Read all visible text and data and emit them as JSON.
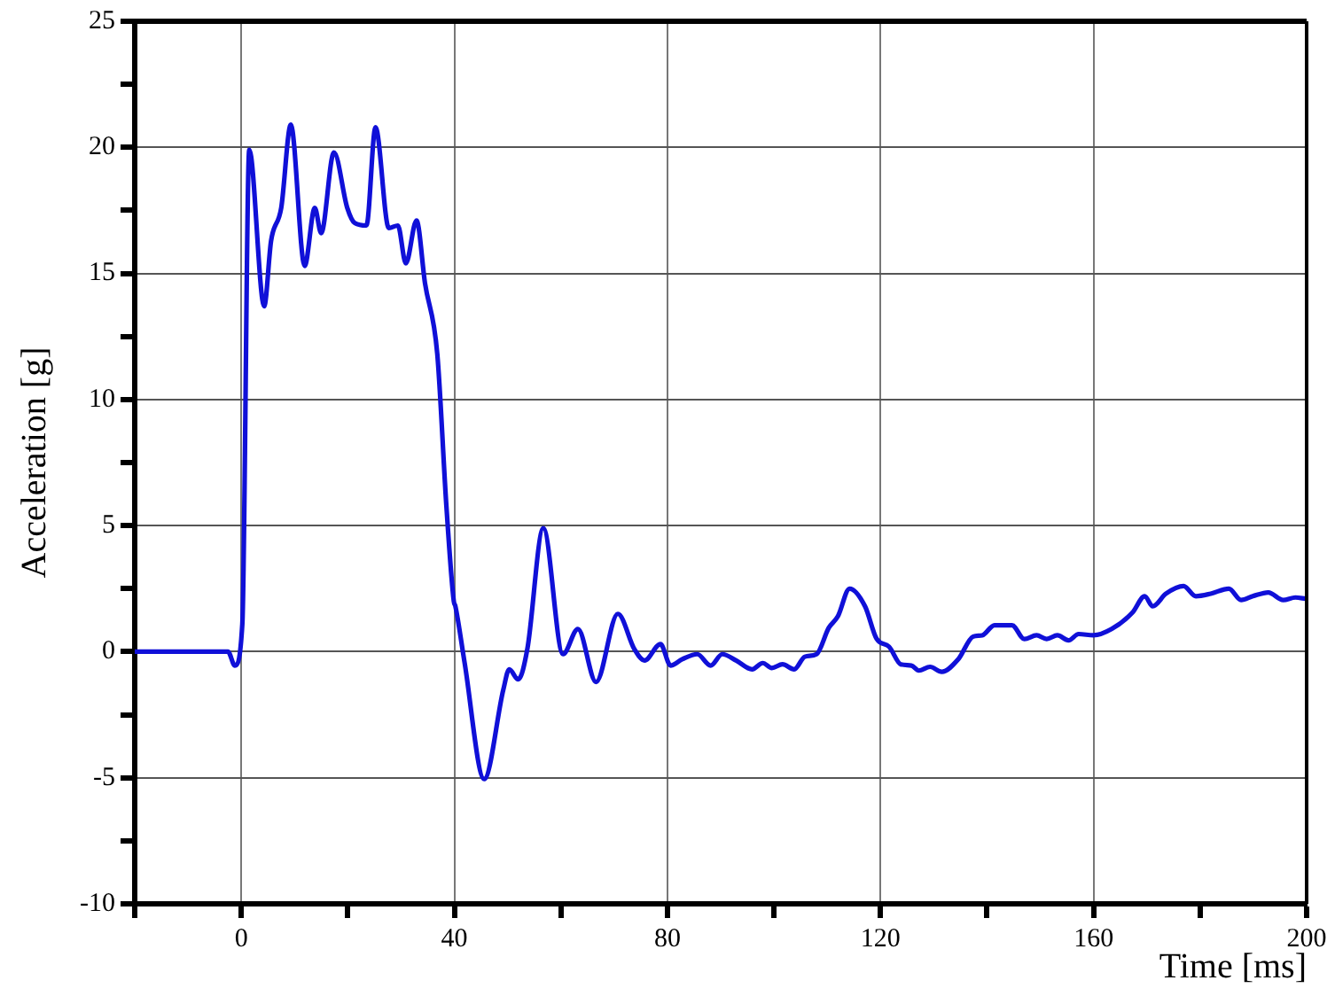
{
  "chart_data": {
    "type": "line",
    "xlabel": "Time [ms]",
    "ylabel": "Acceleration [g]",
    "xlim": [
      -20,
      200
    ],
    "ylim": [
      -10,
      25
    ],
    "xticks": [
      {
        "value": -20,
        "label": null
      },
      0,
      {
        "value": 20,
        "label": null
      },
      40,
      {
        "value": 60,
        "label": null
      },
      80,
      {
        "value": 100,
        "label": null
      },
      120,
      {
        "value": 140,
        "label": null
      },
      160,
      {
        "value": 180,
        "label": null
      },
      200
    ],
    "yticks": [
      -10,
      {
        "value": -7.5,
        "label": null
      },
      -5,
      {
        "value": -2.5,
        "label": null
      },
      0,
      {
        "value": 2.5,
        "label": null
      },
      5,
      {
        "value": 7.5,
        "label": null
      },
      10,
      {
        "value": 12.5,
        "label": null
      },
      15,
      {
        "value": 17.5,
        "label": null
      },
      20,
      {
        "value": 22.5,
        "label": null
      },
      25
    ],
    "grid": true,
    "marker": "none",
    "line_style": "solid",
    "series": [
      {
        "color": "#1010d8",
        "x": [
          -20,
          -10,
          -2.5,
          -1.2,
          0.2,
          1.5,
          4.3,
          5.6,
          7.5,
          9.3,
          11.9,
          13.8,
          15,
          17.4,
          19.9,
          21.3,
          23.5,
          25.2,
          27.7,
          29.4,
          30.9,
          32.9,
          34.5,
          36.8,
          38.5,
          39.9,
          40.2,
          41.9,
          45.6,
          49.2,
          50.3,
          52.0,
          53.7,
          56.7,
          60.4,
          63.2,
          66.6,
          70.7,
          73.8,
          75.7,
          78.7,
          80.6,
          82.8,
          85.6,
          88.1,
          90.3,
          92.9,
          95.9,
          97.9,
          99.6,
          101.6,
          103.8,
          105.8,
          108.0,
          110.3,
          112.0,
          114.2,
          117.1,
          119.3,
          121.6,
          123.8,
          125.8,
          127.2,
          129.3,
          131.5,
          134.6,
          137.4,
          139.1,
          141.4,
          144.7,
          147,
          149.3,
          151.2,
          153.2,
          155.3,
          157.2,
          160,
          163.4,
          167.3,
          169.6,
          171.1,
          173.6,
          176.9,
          179.2,
          182.0,
          185.4,
          187.7,
          189.9,
          192.8,
          195.6,
          197.9,
          199.8
        ],
        "values": [
          0,
          0,
          0,
          -0.55,
          1.1,
          19.9,
          13.7,
          16.3,
          17.6,
          20.9,
          15.3,
          17.6,
          16.6,
          19.8,
          17.6,
          17.0,
          16.9,
          20.8,
          16.8,
          16.9,
          15.4,
          17.1,
          14.6,
          11.8,
          5.8,
          2.0,
          1.8,
          -0.4,
          -5.05,
          -1.5,
          -0.7,
          -1.1,
          0.1,
          4.9,
          -0.1,
          0.9,
          -1.2,
          1.5,
          0.1,
          -0.35,
          0.3,
          -0.55,
          -0.3,
          -0.1,
          -0.55,
          -0.1,
          -0.35,
          -0.7,
          -0.45,
          -0.65,
          -0.5,
          -0.7,
          -0.2,
          -0.1,
          0.95,
          1.4,
          2.5,
          1.8,
          0.5,
          0.2,
          -0.5,
          -0.55,
          -0.75,
          -0.6,
          -0.8,
          -0.3,
          0.6,
          0.65,
          1.05,
          1.05,
          0.5,
          0.65,
          0.5,
          0.65,
          0.45,
          0.7,
          0.65,
          0.9,
          1.55,
          2.2,
          1.8,
          2.3,
          2.6,
          2.2,
          2.3,
          2.5,
          2.05,
          2.2,
          2.35,
          2.05,
          2.15,
          2.1
        ]
      }
    ]
  }
}
